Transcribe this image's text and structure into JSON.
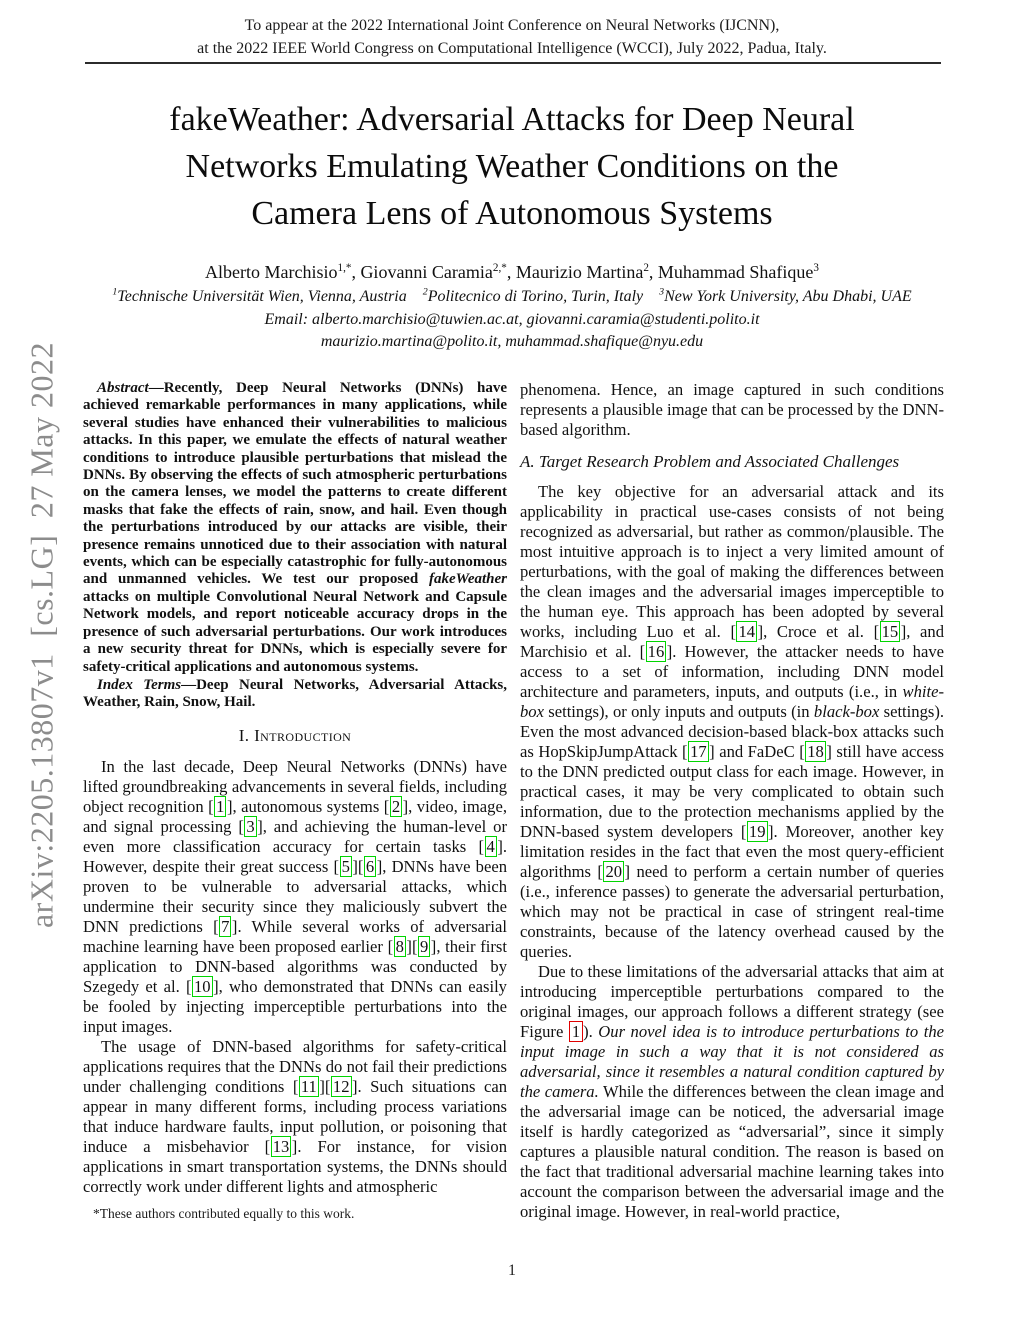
{
  "colors": {
    "citation_box": "#00d500",
    "figure_ref_box": "#e00000",
    "watermark_gray": "#8c8c8c"
  },
  "watermark": {
    "text": "arXiv:2205.13807v1 [cs.LG] 27 May 2022"
  },
  "header": {
    "line1": "To appear at the 2022 International Joint Conference on Neural Networks (IJCNN),",
    "line2": "at the 2022 IEEE World Congress on Computational Intelligence (WCCI), July 2022, Padua, Italy."
  },
  "title": {
    "line1": "fakeWeather: Adversarial Attacks for Deep Neural",
    "line2": "Networks Emulating Weather Conditions on the",
    "line3": "Camera Lens of Autonomous Systems"
  },
  "authors": {
    "segments": [
      {
        "t": "Alberto Marchisio"
      },
      {
        "s": "sup",
        "t": "1,*"
      },
      {
        "t": ", Giovanni Caramia"
      },
      {
        "s": "sup",
        "t": "2,*"
      },
      {
        "t": ", Maurizio Martina"
      },
      {
        "s": "sup",
        "t": "2"
      },
      {
        "t": ", Muhammad Shafique"
      },
      {
        "s": "sup",
        "t": "3"
      }
    ]
  },
  "affiliations": {
    "segments": [
      {
        "s": "sup",
        "t": "1"
      },
      {
        "t": "Technische Universität Wien, Vienna, Austria "
      },
      {
        "s": "sup",
        "t": "2"
      },
      {
        "t": "Politecnico di Torino, Turin, Italy "
      },
      {
        "s": "sup",
        "t": "3"
      },
      {
        "t": "New York University, Abu Dhabi, UAE"
      }
    ]
  },
  "emails": {
    "line1": "Email: alberto.marchisio@tuwien.ac.at, giovanni.caramia@studenti.polito.it",
    "line2": "maurizio.martina@polito.it, muhammad.shafique@nyu.edu"
  },
  "abstract": {
    "segments": [
      {
        "s": "bi",
        "t": "Abstract"
      },
      {
        "s": "b",
        "t": "—Recently, Deep Neural Networks (DNNs) have achieved remarkable performances in many applications, while several studies have enhanced their vulnerabilities to malicious attacks. In this paper, we emulate the effects of natural weather conditions to introduce plausible perturbations that mislead the DNNs. By observing the effects of such atmospheric perturbations on the camera lenses, we model the patterns to create different masks that fake the effects of rain, snow, and hail. Even though the perturbations introduced by our attacks are visible, their presence remains unnoticed due to their association with natural events, which can be especially catastrophic for fully-autonomous and unmanned vehicles. We test our proposed "
      },
      {
        "s": "bi",
        "t": "fakeWeather"
      },
      {
        "s": "b",
        "t": " attacks on multiple Convolutional Neural Network and Capsule Network models, and report noticeable accuracy drops in the presence of such adversarial perturbations. Our work introduces a new security threat for DNNs, which is especially severe for safety-critical applications and autonomous systems."
      }
    ]
  },
  "index_terms": {
    "segments": [
      {
        "s": "bi",
        "t": "Index Terms"
      },
      {
        "s": "b",
        "t": "—Deep Neural Networks, Adversarial Attacks, Weather, Rain, Snow, Hail."
      }
    ]
  },
  "sections": {
    "intro_heading": "I. Introduction",
    "subsection_a": "A. Target Research Problem and Associated Challenges"
  },
  "intro_para1": {
    "segments": [
      {
        "t": "In the last decade, Deep Neural Networks (DNNs) have lifted groundbreaking advancements in several fields, including object recognition "
      },
      {
        "s": "cite",
        "t": "1"
      },
      {
        "t": ", autonomous systems "
      },
      {
        "s": "cite",
        "t": "2"
      },
      {
        "t": ", video, image, and signal processing "
      },
      {
        "s": "cite",
        "t": "3"
      },
      {
        "t": ", and achieving the human-level or even more classification accuracy for certain tasks "
      },
      {
        "s": "cite",
        "t": "4"
      },
      {
        "t": ". However, despite their great success "
      },
      {
        "s": "cite",
        "t": "5"
      },
      {
        "s": "cite",
        "t": "6"
      },
      {
        "t": ", DNNs have been proven to be vulnerable to adversarial attacks, which undermine their security since they maliciously subvert the DNN predictions "
      },
      {
        "s": "cite",
        "t": "7"
      },
      {
        "t": ". While several works of adversarial machine learning have been proposed earlier "
      },
      {
        "s": "cite",
        "t": "8"
      },
      {
        "s": "cite",
        "t": "9"
      },
      {
        "t": ", their first application to DNN-based algorithms was conducted by Szegedy et al. "
      },
      {
        "s": "cite",
        "t": "10"
      },
      {
        "t": ", who demonstrated that DNNs can easily be fooled by injecting imperceptible perturbations into the input images."
      }
    ]
  },
  "intro_para2": {
    "segments": [
      {
        "t": "The usage of DNN-based algorithms for safety-critical applications requires that the DNNs do not fail their predictions under challenging conditions "
      },
      {
        "s": "cite",
        "t": "11"
      },
      {
        "s": "cite",
        "t": "12"
      },
      {
        "t": ". Such situations can appear in many different forms, including process variations that induce hardware faults, input pollution, or poisoning that induce a misbehavior "
      },
      {
        "s": "cite",
        "t": "13"
      },
      {
        "t": ". For instance, for vision applications in smart transportation systems, the DNNs should correctly work under different lights and atmospheric"
      }
    ]
  },
  "right_para1": {
    "segments": [
      {
        "t": "phenomena. Hence, an image captured in such conditions represents a plausible image that can be processed by the DNN-based algorithm."
      }
    ]
  },
  "right_para2": {
    "segments": [
      {
        "t": "The key objective for an adversarial attack and its applicability in practical use-cases consists of not being recognized as adversarial, but rather as common/plausible. The most intuitive approach is to inject a very limited amount of perturbations, with the goal of making the differences between the clean images and the adversarial images imperceptible to the human eye. This approach has been adopted by several works, including Luo et al. "
      },
      {
        "s": "cite",
        "t": "14"
      },
      {
        "t": ", Croce et al. "
      },
      {
        "s": "cite",
        "t": "15"
      },
      {
        "t": ", and Marchisio et al. "
      },
      {
        "s": "cite",
        "t": "16"
      },
      {
        "t": ". However, the attacker needs to have access to a set of information, including DNN model architecture and parameters, inputs, and outputs (i.e., in "
      },
      {
        "s": "i",
        "t": "white-box"
      },
      {
        "t": " settings), or only inputs and outputs (in "
      },
      {
        "s": "i",
        "t": "black-box"
      },
      {
        "t": " settings). Even the most advanced decision-based black-box attacks such as HopSkipJumpAttack "
      },
      {
        "s": "cite",
        "t": "17"
      },
      {
        "t": " and FaDeC "
      },
      {
        "s": "cite",
        "t": "18"
      },
      {
        "t": " still have access to the DNN predicted output class for each image. However, in practical cases, it may be very complicated to obtain such information, due to the protection mechanisms applied by the DNN-based system developers "
      },
      {
        "s": "cite",
        "t": "19"
      },
      {
        "t": ". Moreover, another key limitation resides in the fact that even the most query-efficient algorithms "
      },
      {
        "s": "cite",
        "t": "20"
      },
      {
        "t": " need to perform a certain number of queries (i.e., inference passes) to generate the adversarial perturbation, which may not be practical in case of stringent real-time constraints, because of the latency overhead caused by the queries."
      }
    ]
  },
  "right_para3": {
    "segments": [
      {
        "t": "Due to these limitations of the adversarial attacks that aim at introducing imperceptible perturbations compared to the original images, our approach follows a different strategy (see Figure "
      },
      {
        "s": "figref",
        "t": "1"
      },
      {
        "t": "). "
      },
      {
        "s": "i",
        "t": "Our novel idea is to introduce perturbations to the input image in such a way that it is not considered as adversarial, since it resembles a natural condition captured by the camera."
      },
      {
        "t": " While the differences between the clean image and the adversarial image can be noticed, the adversarial image itself is hardly categorized as “adversarial”, since it simply captures a plausible natural condition. The reason is based on the fact that traditional adversarial machine learning takes into account the comparison between the adversarial image and the original image. However, in real-world practice,"
      }
    ]
  },
  "footnote": {
    "text": "*These authors contributed equally to this work."
  },
  "page": {
    "number": "1"
  }
}
